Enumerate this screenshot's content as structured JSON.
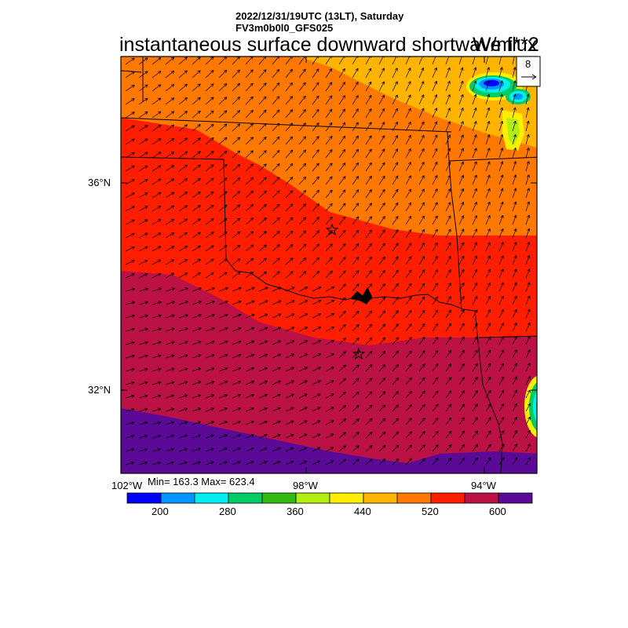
{
  "header": {
    "line1": "2022/12/31/19UTC (13LT), Saturday",
    "line2": "FV3m0b0l0_GFS025"
  },
  "field_title": "instantaneous surface downward shortwave flux",
  "units": "W/m**2",
  "vector_ref": {
    "value": "8"
  },
  "lat_labels": [
    "36°N",
    "32°N"
  ],
  "lon_labels": [
    "102°W",
    "98°W",
    "94°W"
  ],
  "stats": {
    "text": "Min= 163.3 Max= 623.4",
    "min": 163.3,
    "max": 623.4
  },
  "colorbar": {
    "colors": [
      "#0000ff",
      "#0096ff",
      "#00f0f0",
      "#00cc66",
      "#33bb11",
      "#b3ee11",
      "#ffee00",
      "#ffb400",
      "#ff7800",
      "#ff1e00",
      "#bb1144",
      "#5a0a96"
    ],
    "tick_labels": [
      "200",
      "280",
      "360",
      "440",
      "520",
      "600"
    ],
    "tick_values": [
      200,
      280,
      360,
      440,
      520,
      600
    ]
  },
  "markers": [
    {
      "name": "star-oklahoma-city",
      "lon": -97.5,
      "lat": 35.4
    },
    {
      "name": "star-dallas",
      "lon": -96.9,
      "lat": 32.8
    }
  ]
}
